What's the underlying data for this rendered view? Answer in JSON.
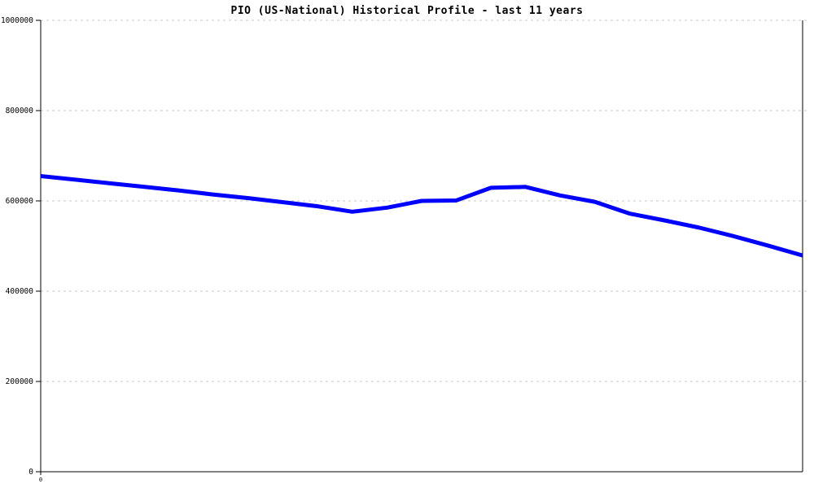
{
  "header": {
    "title": "PIO (US-National) Historical Profile - last 11 years"
  },
  "colors": {
    "line": "#0000FF",
    "grid": "#C9C9C9",
    "axis": "#000000",
    "background": "#FFFFFF",
    "text": "#000000"
  },
  "chart_data": {
    "type": "line",
    "title": "PIO (US-National) Historical Profile - last 11 years",
    "xlabel": "",
    "ylabel": "",
    "xlim": [
      0,
      11
    ],
    "ylim": [
      0,
      1000000
    ],
    "grid": "horizontal-dashed",
    "legend_position": "none",
    "series_name": "PIO (US-National)",
    "x_units": "years (0 = start of 11-year window)",
    "x": [
      0,
      0.5,
      1,
      1.5,
      2,
      2.5,
      3,
      3.5,
      4,
      4.5,
      5,
      5.5,
      6,
      6.5,
      7,
      7.5,
      8,
      8.5,
      9,
      9.5,
      10,
      10.5,
      11
    ],
    "values": [
      655000,
      647000,
      639000,
      631000,
      623000,
      614000,
      606000,
      597000,
      588000,
      576000,
      585000,
      600000,
      601000,
      629000,
      631000,
      612000,
      598000,
      572000,
      557000,
      541000,
      522000,
      501000,
      479000
    ],
    "y_ticks": [
      {
        "value": 0,
        "label": "0"
      },
      {
        "value": 200000,
        "label": "200000"
      },
      {
        "value": 400000,
        "label": "400000"
      },
      {
        "value": 600000,
        "label": "600000"
      },
      {
        "value": 800000,
        "label": "800000"
      },
      {
        "value": 1000000,
        "label": "1000000"
      }
    ],
    "x_ticks": [
      {
        "value": 0,
        "label": "0"
      }
    ]
  }
}
